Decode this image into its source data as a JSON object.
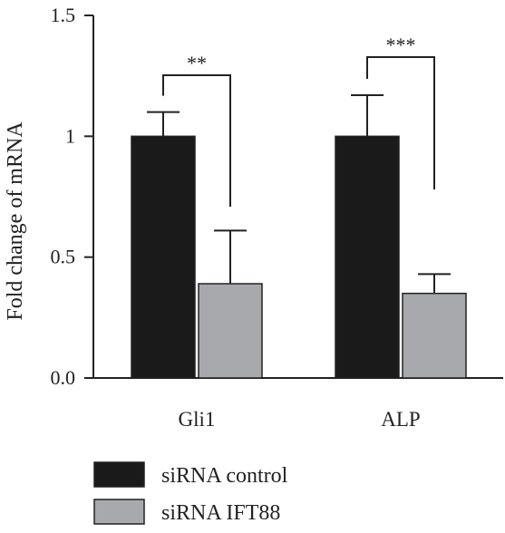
{
  "chart_data": {
    "type": "bar",
    "categories": [
      "Gli1",
      "ALP"
    ],
    "series": [
      {
        "name": "siRNA control",
        "values": [
          1.0,
          1.0
        ],
        "error": [
          0.1,
          0.17
        ],
        "color": "#1a1a1a"
      },
      {
        "name": "siRNA IFT88",
        "values": [
          0.39,
          0.35
        ],
        "error": [
          0.22,
          0.08
        ],
        "color": "#a7a9ac"
      }
    ],
    "ylabel": "Fold change of mRNA",
    "ylim": [
      0.0,
      1.5
    ],
    "yticks": [
      "0.0",
      "0.5",
      "1",
      "1.5"
    ],
    "ytick_values": [
      0.0,
      0.5,
      1.0,
      1.5
    ],
    "significance": [
      "**",
      "***"
    ],
    "legend_position": "bottom-left",
    "grid": false
  }
}
